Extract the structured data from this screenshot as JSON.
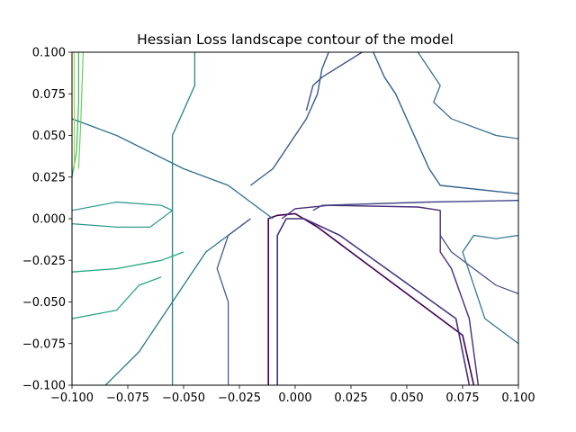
{
  "chart_data": {
    "type": "contour",
    "title": "Hessian Loss landscape contour of the model",
    "xlabel": "",
    "ylabel": "",
    "xlim": [
      -0.1,
      0.1
    ],
    "ylim": [
      -0.1,
      0.1
    ],
    "x_ticks": [
      -0.1,
      -0.075,
      -0.05,
      -0.025,
      0.0,
      0.025,
      0.05,
      0.075,
      0.1
    ],
    "x_tick_labels": [
      "−0.100",
      "−0.075",
      "−0.050",
      "−0.025",
      "0.000",
      "0.025",
      "0.050",
      "0.075",
      "0.100"
    ],
    "y_ticks": [
      -0.1,
      -0.075,
      -0.05,
      -0.025,
      0.0,
      0.025,
      0.05,
      0.075,
      0.1
    ],
    "y_tick_labels": [
      "−0.100",
      "−0.075",
      "−0.050",
      "−0.025",
      "0.000",
      "0.025",
      "0.050",
      "0.075",
      "0.100"
    ],
    "grid": false,
    "colormap": [
      "#440154",
      "#46327e",
      "#365c8d",
      "#277f8e",
      "#1fa187",
      "#4ac16d",
      "#a0da39",
      "#fde725"
    ],
    "contour_lines": [
      {
        "level": 1,
        "color": "#440154",
        "width": 1.6,
        "points": [
          [
            -0.012,
            -0.1
          ],
          [
            -0.012,
            0.0
          ],
          [
            -0.008,
            0.002
          ],
          [
            0.0,
            0.003
          ],
          [
            0.01,
            -0.005
          ],
          [
            0.02,
            -0.015
          ],
          [
            0.075,
            -0.07
          ],
          [
            0.08,
            -0.1
          ]
        ]
      },
      {
        "level": 2,
        "color": "#46327e",
        "width": 1.6,
        "points": [
          [
            -0.008,
            -0.1
          ],
          [
            -0.008,
            -0.01
          ],
          [
            -0.004,
            0.0
          ],
          [
            0.004,
            0.0
          ],
          [
            0.02,
            -0.01
          ],
          [
            0.072,
            -0.06
          ],
          [
            0.078,
            -0.1
          ]
        ]
      },
      {
        "level": 3,
        "color": "#472d7b",
        "width": 1.4,
        "points": [
          [
            -0.006,
            0.0
          ],
          [
            0.0,
            0.006
          ],
          [
            0.015,
            0.008
          ],
          [
            0.055,
            0.007
          ],
          [
            0.065,
            0.005
          ],
          [
            0.065,
            -0.02
          ],
          [
            0.07,
            -0.03
          ],
          [
            0.078,
            -0.06
          ],
          [
            0.082,
            -0.1
          ]
        ]
      },
      {
        "level": 4,
        "color": "#414487",
        "width": 1.4,
        "points": [
          [
            0.008,
            0.005
          ],
          [
            0.012,
            0.008
          ],
          [
            0.06,
            0.01
          ],
          [
            0.1,
            0.011
          ]
        ]
      },
      {
        "level": 5,
        "color": "#3b528b",
        "width": 1.4,
        "points": [
          [
            0.005,
            0.065
          ],
          [
            0.008,
            0.08
          ],
          [
            0.012,
            0.085
          ],
          [
            0.03,
            0.1
          ]
        ]
      },
      {
        "level": 6,
        "color": "#365c8d",
        "width": 1.4,
        "points": [
          [
            -0.02,
            0.02
          ],
          [
            -0.01,
            0.03
          ],
          [
            -0.005,
            0.04
          ],
          [
            0.005,
            0.06
          ],
          [
            0.01,
            0.075
          ],
          [
            0.012,
            0.09
          ],
          [
            0.015,
            0.1
          ]
        ]
      },
      {
        "level": 7,
        "color": "#33638d",
        "width": 1.4,
        "points": [
          [
            0.035,
            0.1
          ],
          [
            0.04,
            0.085
          ],
          [
            0.045,
            0.075
          ],
          [
            0.05,
            0.06
          ],
          [
            0.055,
            0.045
          ],
          [
            0.06,
            0.03
          ],
          [
            0.065,
            0.02
          ],
          [
            0.1,
            0.015
          ]
        ]
      },
      {
        "level": 8,
        "color": "#2d708e",
        "width": 1.3,
        "points": [
          [
            -0.1,
            0.06
          ],
          [
            -0.08,
            0.05
          ],
          [
            -0.05,
            0.03
          ],
          [
            -0.03,
            0.02
          ],
          [
            -0.02,
            0.01
          ],
          [
            -0.01,
            0.0
          ]
        ]
      },
      {
        "level": 9,
        "color": "#2a788e",
        "width": 1.3,
        "points": [
          [
            -0.085,
            -0.1
          ],
          [
            -0.07,
            -0.08
          ],
          [
            -0.06,
            -0.06
          ],
          [
            -0.05,
            -0.04
          ],
          [
            -0.04,
            -0.02
          ],
          [
            -0.03,
            -0.01
          ],
          [
            -0.02,
            0.0
          ]
        ]
      },
      {
        "level": 10,
        "color": "#26828e",
        "width": 1.3,
        "points": [
          [
            -0.055,
            -0.1
          ],
          [
            -0.055,
            0.0
          ],
          [
            -0.055,
            0.05
          ],
          [
            -0.05,
            0.065
          ],
          [
            -0.045,
            0.08
          ],
          [
            -0.045,
            0.1
          ]
        ]
      },
      {
        "level": 11,
        "color": "#22a884",
        "width": 1.3,
        "points": [
          [
            -0.1,
            -0.032
          ],
          [
            -0.08,
            -0.03
          ],
          [
            -0.06,
            -0.025
          ],
          [
            -0.05,
            -0.02
          ]
        ]
      },
      {
        "level": 12,
        "color": "#1fa187",
        "width": 1.2,
        "points": [
          [
            -0.1,
            -0.06
          ],
          [
            -0.08,
            -0.055
          ],
          [
            -0.07,
            -0.04
          ],
          [
            -0.06,
            -0.035
          ]
        ]
      },
      {
        "level": 13,
        "color": "#35b779",
        "width": 1.2,
        "points": [
          [
            -0.1,
            0.025
          ],
          [
            -0.098,
            0.04
          ],
          [
            -0.097,
            0.07
          ],
          [
            -0.097,
            0.1
          ]
        ]
      },
      {
        "level": 14,
        "color": "#6ece58",
        "width": 1.2,
        "points": [
          [
            -0.097,
            0.03
          ],
          [
            -0.096,
            0.06
          ],
          [
            -0.095,
            0.1
          ]
        ]
      },
      {
        "level": 15,
        "color": "#a0da39",
        "width": 1.2,
        "points": [
          [
            -0.099,
            0.03
          ],
          [
            -0.099,
            0.07
          ],
          [
            -0.099,
            0.1
          ]
        ]
      },
      {
        "level": 16,
        "color": "#21918c",
        "width": 1.2,
        "points": [
          [
            -0.1,
            0.005
          ],
          [
            -0.08,
            0.01
          ],
          [
            -0.06,
            0.008
          ],
          [
            -0.055,
            0.005
          ],
          [
            -0.065,
            -0.005
          ],
          [
            -0.08,
            -0.005
          ],
          [
            -0.1,
            -0.003
          ]
        ]
      },
      {
        "level": 17,
        "color": "#31688e",
        "width": 1.2,
        "points": [
          [
            0.055,
            0.1
          ],
          [
            0.06,
            0.09
          ],
          [
            0.065,
            0.08
          ],
          [
            0.062,
            0.07
          ],
          [
            0.07,
            0.06
          ],
          [
            0.08,
            0.055
          ],
          [
            0.09,
            0.05
          ],
          [
            0.1,
            0.048
          ]
        ]
      },
      {
        "level": 18,
        "color": "#3e4989",
        "width": 1.2,
        "points": [
          [
            0.065,
            -0.01
          ],
          [
            0.07,
            -0.02
          ],
          [
            0.08,
            -0.03
          ],
          [
            0.09,
            -0.04
          ],
          [
            0.1,
            -0.045
          ]
        ]
      },
      {
        "level": 19,
        "color": "#2c728e",
        "width": 1.2,
        "points": [
          [
            0.1,
            -0.01
          ],
          [
            0.09,
            -0.012
          ],
          [
            0.08,
            -0.01
          ],
          [
            0.075,
            -0.02
          ],
          [
            0.085,
            -0.06
          ],
          [
            0.095,
            -0.07
          ],
          [
            0.1,
            -0.075
          ]
        ]
      },
      {
        "level": 20,
        "color": "#3b528b",
        "width": 1.2,
        "points": [
          [
            -0.03,
            -0.1
          ],
          [
            -0.03,
            -0.05
          ],
          [
            -0.035,
            -0.03
          ],
          [
            -0.03,
            -0.01
          ],
          [
            -0.02,
            0.0
          ]
        ]
      }
    ]
  }
}
